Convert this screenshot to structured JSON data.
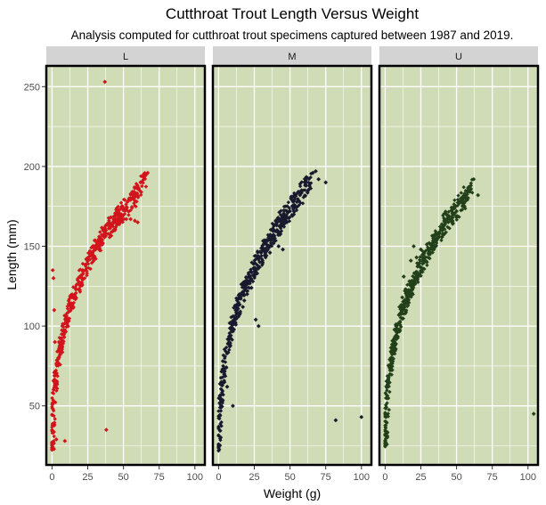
{
  "chart_data": {
    "type": "scatter",
    "title": "Cutthroat Trout Length Versus Weight",
    "subtitle": "Analysis computed for cutthroat trout specimens captured between 1987 and 2019.",
    "xlabel": "Weight (g)",
    "ylabel": "Length (mm)",
    "xlim": [
      -4,
      107
    ],
    "ylim": [
      13,
      263
    ],
    "x_ticks": [
      0,
      25,
      50,
      75,
      100
    ],
    "y_ticks": [
      50,
      100,
      150,
      200,
      250
    ],
    "x_tick_labels": [
      "0",
      "25",
      "50",
      "75",
      "100"
    ],
    "y_tick_labels": [
      "50",
      "100",
      "150",
      "200",
      "250"
    ],
    "grid": true,
    "legend": "none",
    "panel_background": "#d0dcb6",
    "strip_background": "#d3d3d3",
    "facets": [
      {
        "label": "L",
        "color": "#d2141c",
        "curve": [
          [
            0.1,
            25
          ],
          [
            0.3,
            32
          ],
          [
            0.6,
            40
          ],
          [
            1,
            48
          ],
          [
            1.5,
            55
          ],
          [
            2,
            62
          ],
          [
            3,
            70
          ],
          [
            4,
            77
          ],
          [
            5,
            83
          ],
          [
            6,
            88
          ],
          [
            8,
            96
          ],
          [
            10,
            103
          ],
          [
            12,
            110
          ],
          [
            15,
            118
          ],
          [
            18,
            125
          ],
          [
            21,
            132
          ],
          [
            25,
            139
          ],
          [
            28,
            145
          ],
          [
            32,
            151
          ],
          [
            36,
            157
          ],
          [
            40,
            162
          ],
          [
            45,
            167
          ],
          [
            50,
            172
          ],
          [
            55,
            178
          ],
          [
            60,
            185
          ],
          [
            65,
            192
          ]
        ],
        "points": [
          [
            37,
            253
          ],
          [
            38,
            35
          ],
          [
            0.5,
            135
          ],
          [
            9,
            28
          ],
          [
            3,
            29
          ],
          [
            66,
            195
          ],
          [
            67,
            196
          ],
          [
            62,
            190
          ],
          [
            60,
            186
          ],
          [
            58,
            181
          ],
          [
            55,
            180
          ],
          [
            53,
            178
          ],
          [
            50,
            173
          ],
          [
            47,
            170
          ],
          [
            45,
            166
          ],
          [
            48,
            165
          ],
          [
            52,
            167
          ],
          [
            55,
            167
          ],
          [
            58,
            166
          ],
          [
            60,
            165
          ],
          [
            44,
            160
          ],
          [
            42,
            163
          ],
          [
            41,
            168
          ],
          [
            40,
            165
          ],
          [
            36,
            161
          ],
          [
            33,
            156
          ],
          [
            30,
            150
          ],
          [
            29,
            147
          ],
          [
            1,
            130
          ],
          [
            1.5,
            110
          ],
          [
            2,
            90
          ]
        ]
      },
      {
        "label": "M",
        "color": "#1a1a2e",
        "curve": [
          [
            0.1,
            24
          ],
          [
            0.3,
            30
          ],
          [
            0.6,
            38
          ],
          [
            1,
            46
          ],
          [
            1.5,
            53
          ],
          [
            2,
            60
          ],
          [
            3,
            68
          ],
          [
            4,
            75
          ],
          [
            5,
            81
          ],
          [
            6,
            86
          ],
          [
            8,
            94
          ],
          [
            10,
            101
          ],
          [
            12,
            108
          ],
          [
            15,
            116
          ],
          [
            18,
            123
          ],
          [
            22,
            131
          ],
          [
            26,
            138
          ],
          [
            30,
            145
          ],
          [
            34,
            151
          ],
          [
            38,
            157
          ],
          [
            42,
            163
          ],
          [
            46,
            168
          ],
          [
            50,
            173
          ],
          [
            55,
            179
          ],
          [
            60,
            186
          ],
          [
            65,
            192
          ]
        ],
        "points": [
          [
            82,
            41
          ],
          [
            100,
            43
          ],
          [
            66,
            196
          ],
          [
            68,
            197
          ],
          [
            62,
            193
          ],
          [
            70,
            192
          ],
          [
            75,
            190
          ],
          [
            58,
            185
          ],
          [
            57,
            182
          ],
          [
            55,
            178
          ],
          [
            53,
            176
          ],
          [
            50,
            172
          ],
          [
            48,
            168
          ],
          [
            46,
            167
          ],
          [
            44,
            165
          ],
          [
            41,
            160
          ],
          [
            38,
            155
          ],
          [
            35,
            150
          ],
          [
            42,
            150
          ],
          [
            45,
            148
          ],
          [
            36,
            146
          ],
          [
            27,
            133
          ],
          [
            25,
            131
          ],
          [
            24,
            128
          ],
          [
            23,
            124
          ],
          [
            20,
            120
          ],
          [
            18,
            116
          ],
          [
            17,
            112
          ],
          [
            15,
            108
          ],
          [
            26,
            104
          ],
          [
            28,
            100
          ],
          [
            3,
            78
          ],
          [
            4,
            70
          ],
          [
            6,
            62
          ],
          [
            1,
            55
          ],
          [
            0.5,
            42
          ],
          [
            10,
            50
          ]
        ]
      },
      {
        "label": "U",
        "color": "#22401a",
        "curve": [
          [
            0.1,
            26
          ],
          [
            0.3,
            32
          ],
          [
            0.6,
            40
          ],
          [
            1,
            47
          ],
          [
            1.5,
            55
          ],
          [
            2,
            62
          ],
          [
            3,
            70
          ],
          [
            4,
            77
          ],
          [
            5,
            83
          ],
          [
            6,
            88
          ],
          [
            8,
            96
          ],
          [
            10,
            103
          ],
          [
            12,
            110
          ],
          [
            15,
            117
          ],
          [
            18,
            124
          ],
          [
            21,
            131
          ],
          [
            25,
            138
          ],
          [
            29,
            145
          ],
          [
            33,
            151
          ],
          [
            37,
            157
          ],
          [
            41,
            163
          ],
          [
            45,
            168
          ],
          [
            50,
            173
          ],
          [
            55,
            180
          ],
          [
            60,
            186
          ]
        ],
        "points": [
          [
            104,
            45
          ],
          [
            62,
            192
          ],
          [
            60,
            188
          ],
          [
            65,
            182
          ],
          [
            58,
            185
          ],
          [
            55,
            180
          ],
          [
            52,
            177
          ],
          [
            50,
            172
          ],
          [
            47,
            168
          ],
          [
            45,
            167
          ],
          [
            42,
            165
          ],
          [
            40,
            160
          ],
          [
            38,
            156
          ],
          [
            36,
            154
          ],
          [
            30,
            148
          ],
          [
            25,
            148
          ],
          [
            20,
            150
          ],
          [
            18,
            141
          ],
          [
            22,
            143
          ],
          [
            17,
            128
          ],
          [
            14,
            122
          ],
          [
            12,
            118
          ],
          [
            10,
            112
          ],
          [
            13,
            131
          ],
          [
            8,
            100
          ],
          [
            6,
            90
          ],
          [
            4,
            80
          ],
          [
            2,
            66
          ],
          [
            1,
            55
          ],
          [
            0.5,
            40
          ],
          [
            0.3,
            32
          ]
        ]
      }
    ]
  }
}
